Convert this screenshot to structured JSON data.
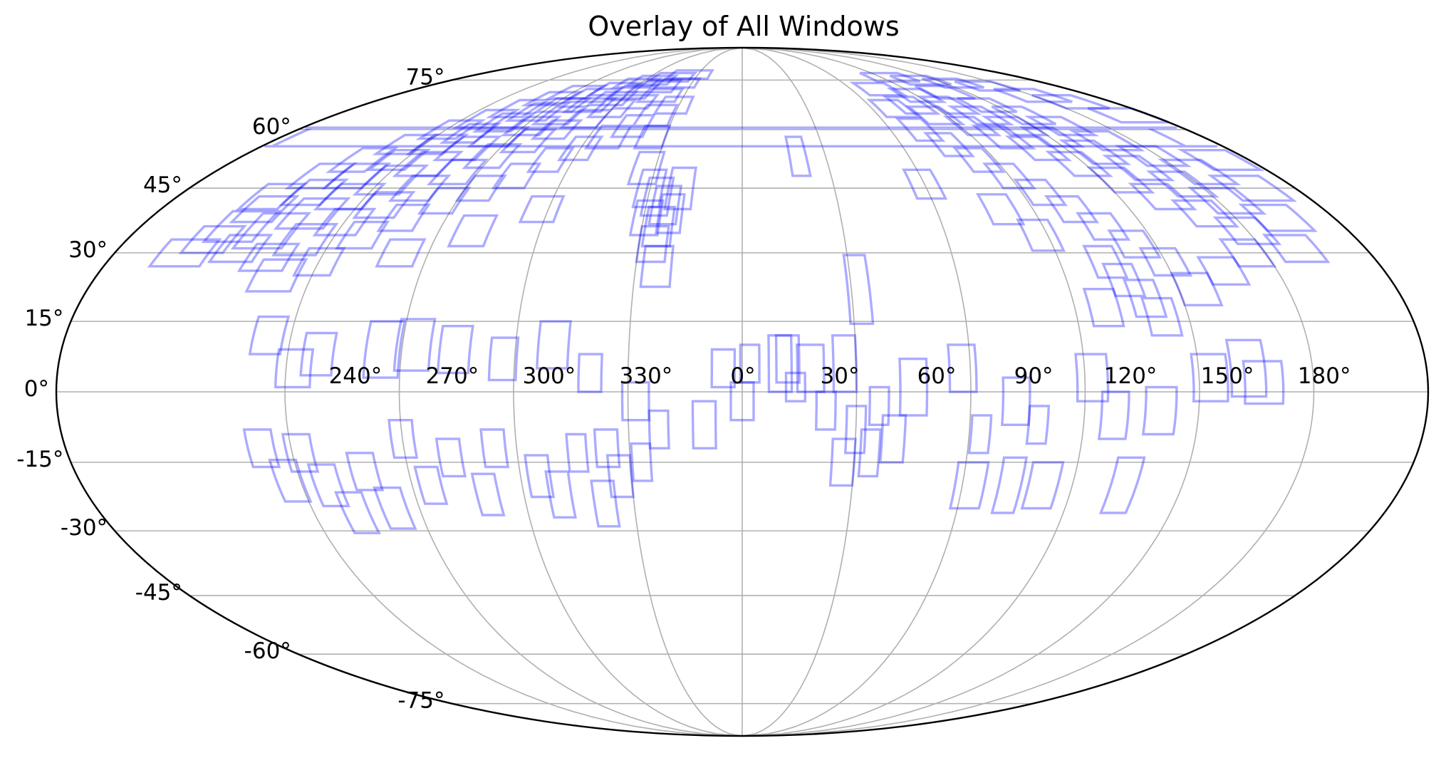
{
  "chart_data": {
    "type": "scatter",
    "projection": "mollweide",
    "title": "Overlay of All Windows",
    "grid": true,
    "colors": {
      "windows": "#0000ff",
      "grid": "#b0b0b0",
      "frame": "#000000"
    },
    "lon_ticks": [
      {
        "lon": 240,
        "label": "240°"
      },
      {
        "lon": 270,
        "label": "270°"
      },
      {
        "lon": 300,
        "label": "300°"
      },
      {
        "lon": 330,
        "label": "330°"
      },
      {
        "lon": 0,
        "label": "0°"
      },
      {
        "lon": 30,
        "label": "30°"
      },
      {
        "lon": 60,
        "label": "60°"
      },
      {
        "lon": 90,
        "label": "90°"
      },
      {
        "lon": 120,
        "label": "120°"
      },
      {
        "lon": 150,
        "label": "150°"
      },
      {
        "lon": 180,
        "label": "180°"
      }
    ],
    "lat_ticks": [
      {
        "lat": 75,
        "label": "75°"
      },
      {
        "lat": 60,
        "label": "60°"
      },
      {
        "lat": 45,
        "label": "45°"
      },
      {
        "lat": 30,
        "label": "30°"
      },
      {
        "lat": 15,
        "label": "15°"
      },
      {
        "lat": 0,
        "label": "0°"
      },
      {
        "lat": -15,
        "label": "-15°"
      },
      {
        "lat": -30,
        "label": "-30°"
      },
      {
        "lat": -45,
        "label": "-45°"
      },
      {
        "lat": -60,
        "label": "-60°"
      },
      {
        "lat": -75,
        "label": "-75°"
      }
    ],
    "windows": [
      {
        "lon": -160,
        "lat": 30,
        "w": 14,
        "h": 6
      },
      {
        "lon": -155,
        "lat": 33,
        "w": 12,
        "h": 6
      },
      {
        "lon": -150,
        "lat": 36,
        "w": 14,
        "h": 7
      },
      {
        "lon": -148,
        "lat": 40,
        "w": 12,
        "h": 6
      },
      {
        "lon": -145,
        "lat": 31,
        "w": 12,
        "h": 6
      },
      {
        "lon": -140,
        "lat": 35,
        "w": 14,
        "h": 8
      },
      {
        "lon": -138,
        "lat": 44,
        "w": 12,
        "h": 6
      },
      {
        "lon": -135,
        "lat": 29,
        "w": 12,
        "h": 6
      },
      {
        "lon": -132,
        "lat": 39,
        "w": 14,
        "h": 7
      },
      {
        "lon": -130,
        "lat": 48,
        "w": 12,
        "h": 6
      },
      {
        "lon": -128,
        "lat": 33,
        "w": 12,
        "h": 7
      },
      {
        "lon": -125,
        "lat": 43,
        "w": 14,
        "h": 6
      },
      {
        "lon": -122,
        "lat": 52,
        "w": 12,
        "h": 5
      },
      {
        "lon": -120,
        "lat": 37,
        "w": 12,
        "h": 6
      },
      {
        "lon": -117,
        "lat": 47,
        "w": 14,
        "h": 7
      },
      {
        "lon": -115,
        "lat": 56,
        "w": 12,
        "h": 5
      },
      {
        "lon": -112,
        "lat": 41,
        "w": 12,
        "h": 6
      },
      {
        "lon": -110,
        "lat": 51,
        "w": 14,
        "h": 6
      },
      {
        "lon": -108,
        "lat": 59,
        "w": 12,
        "h": 5
      },
      {
        "lon": -105,
        "lat": 45,
        "w": 12,
        "h": 6
      },
      {
        "lon": -102,
        "lat": 55,
        "w": 14,
        "h": 6
      },
      {
        "lon": -100,
        "lat": 62,
        "w": 14,
        "h": 5
      },
      {
        "lon": -97,
        "lat": 49,
        "w": 12,
        "h": 6
      },
      {
        "lon": -95,
        "lat": 58,
        "w": 14,
        "h": 5
      },
      {
        "lon": -92,
        "lat": 65,
        "w": 16,
        "h": 5
      },
      {
        "lon": -90,
        "lat": 53,
        "w": 12,
        "h": 6
      },
      {
        "lon": -87,
        "lat": 61,
        "w": 14,
        "h": 5
      },
      {
        "lon": -85,
        "lat": 67,
        "w": 16,
        "h": 4
      },
      {
        "lon": -82,
        "lat": 57,
        "w": 12,
        "h": 6
      },
      {
        "lon": -80,
        "lat": 64,
        "w": 14,
        "h": 5
      },
      {
        "lon": -77,
        "lat": 70,
        "w": 18,
        "h": 4
      },
      {
        "lon": -75,
        "lat": 60,
        "w": 12,
        "h": 5
      },
      {
        "lon": -72,
        "lat": 67,
        "w": 16,
        "h": 4
      },
      {
        "lon": -70,
        "lat": 72,
        "w": 18,
        "h": 4
      },
      {
        "lon": -67,
        "lat": 63,
        "w": 14,
        "h": 5
      },
      {
        "lon": -65,
        "lat": 69,
        "w": 16,
        "h": 4
      },
      {
        "lon": -62,
        "lat": 74,
        "w": 20,
        "h": 3
      },
      {
        "lon": -60,
        "lat": 66,
        "w": 14,
        "h": 5
      },
      {
        "lon": -58,
        "lat": 71,
        "w": 18,
        "h": 4
      },
      {
        "lon": -55,
        "lat": 75,
        "w": 22,
        "h": 3
      },
      {
        "lon": -52,
        "lat": 68,
        "w": 16,
        "h": 4
      },
      {
        "lon": -48,
        "lat": 73,
        "w": 20,
        "h": 4
      },
      {
        "lon": -45,
        "lat": 76,
        "w": 24,
        "h": 3
      },
      {
        "lon": -42,
        "lat": 70,
        "w": 18,
        "h": 4
      },
      {
        "lon": -38,
        "lat": 74,
        "w": 22,
        "h": 3
      },
      {
        "lon": -35,
        "lat": 77,
        "w": 26,
        "h": 3
      },
      {
        "lon": -150,
        "lat": 43,
        "w": 12,
        "h": 6
      },
      {
        "lon": -142,
        "lat": 48,
        "w": 12,
        "h": 6
      },
      {
        "lon": -135,
        "lat": 52,
        "w": 12,
        "h": 6
      },
      {
        "lon": -127,
        "lat": 56,
        "w": 12,
        "h": 5
      },
      {
        "lon": -118,
        "lat": 60,
        "w": 14,
        "h": 5
      },
      {
        "lon": -110,
        "lat": 63,
        "w": 14,
        "h": 5
      },
      {
        "lon": -103,
        "lat": 66,
        "w": 14,
        "h": 5
      },
      {
        "lon": -95,
        "lat": 69,
        "w": 16,
        "h": 4
      },
      {
        "lon": -88,
        "lat": 71,
        "w": 18,
        "h": 4
      },
      {
        "lon": -112,
        "lat": 34,
        "w": 10,
        "h": 6
      },
      {
        "lon": -103,
        "lat": 38,
        "w": 10,
        "h": 6
      },
      {
        "lon": -94,
        "lat": 42,
        "w": 10,
        "h": 6
      },
      {
        "lon": -85,
        "lat": 45,
        "w": 10,
        "h": 6
      },
      {
        "lon": -76,
        "lat": 48,
        "w": 10,
        "h": 6
      },
      {
        "lon": -68,
        "lat": 52,
        "w": 10,
        "h": 6
      },
      {
        "lon": -60,
        "lat": 55,
        "w": 10,
        "h": 6
      },
      {
        "lon": -52,
        "lat": 58,
        "w": 12,
        "h": 6
      },
      {
        "lon": -45,
        "lat": 61,
        "w": 12,
        "h": 6
      },
      {
        "lon": -38,
        "lat": 64,
        "w": 14,
        "h": 6
      },
      {
        "lon": -32,
        "lat": 67,
        "w": 14,
        "h": 5
      },
      {
        "lon": -130,
        "lat": 25,
        "w": 12,
        "h": 7
      },
      {
        "lon": -120,
        "lat": 28,
        "w": 10,
        "h": 6
      },
      {
        "lon": -98,
        "lat": 30,
        "w": 10,
        "h": 6
      },
      {
        "lon": -80,
        "lat": 35,
        "w": 10,
        "h": 7
      },
      {
        "lon": -62,
        "lat": 40,
        "w": 10,
        "h": 6
      },
      {
        "lon": -33,
        "lat": 50,
        "w": 9,
        "h": 8
      },
      {
        "lon": -30,
        "lat": 45,
        "w": 8,
        "h": 9
      },
      {
        "lon": -27,
        "lat": 43,
        "w": 8,
        "h": 9
      },
      {
        "lon": -24,
        "lat": 41,
        "w": 8,
        "h": 9
      },
      {
        "lon": -29,
        "lat": 38,
        "w": 8,
        "h": 8
      },
      {
        "lon": -25,
        "lat": 36,
        "w": 8,
        "h": 9
      },
      {
        "lon": -22,
        "lat": 39,
        "w": 7,
        "h": 9
      },
      {
        "lon": -26,
        "lat": 32,
        "w": 8,
        "h": 8
      },
      {
        "lon": -24,
        "lat": 27,
        "w": 8,
        "h": 9
      },
      {
        "lon": -20,
        "lat": 45,
        "w": 8,
        "h": 10
      },
      {
        "lon": -35,
        "lat": 58,
        "w": 10,
        "h": 6
      },
      {
        "lon": 20,
        "lat": 53,
        "w": 6,
        "h": 10
      },
      {
        "lon": 32,
        "lat": 22,
        "w": 6,
        "h": 15
      },
      {
        "lon": 80,
        "lat": 67,
        "w": 14,
        "h": 5
      },
      {
        "lon": 85,
        "lat": 64,
        "w": 14,
        "h": 5
      },
      {
        "lon": 90,
        "lat": 70,
        "w": 16,
        "h": 4
      },
      {
        "lon": 95,
        "lat": 61,
        "w": 12,
        "h": 5
      },
      {
        "lon": 98,
        "lat": 67,
        "w": 14,
        "h": 5
      },
      {
        "lon": 102,
        "lat": 58,
        "w": 12,
        "h": 6
      },
      {
        "lon": 105,
        "lat": 64,
        "w": 14,
        "h": 5
      },
      {
        "lon": 108,
        "lat": 71,
        "w": 18,
        "h": 4
      },
      {
        "lon": 110,
        "lat": 55,
        "w": 12,
        "h": 6
      },
      {
        "lon": 113,
        "lat": 61,
        "w": 14,
        "h": 5
      },
      {
        "lon": 116,
        "lat": 67,
        "w": 16,
        "h": 4
      },
      {
        "lon": 118,
        "lat": 51,
        "w": 12,
        "h": 6
      },
      {
        "lon": 121,
        "lat": 58,
        "w": 12,
        "h": 5
      },
      {
        "lon": 124,
        "lat": 64,
        "w": 14,
        "h": 5
      },
      {
        "lon": 126,
        "lat": 47,
        "w": 12,
        "h": 6
      },
      {
        "lon": 129,
        "lat": 54,
        "w": 12,
        "h": 6
      },
      {
        "lon": 132,
        "lat": 61,
        "w": 14,
        "h": 5
      },
      {
        "lon": 134,
        "lat": 43,
        "w": 12,
        "h": 6
      },
      {
        "lon": 137,
        "lat": 50,
        "w": 12,
        "h": 6
      },
      {
        "lon": 140,
        "lat": 57,
        "w": 14,
        "h": 5
      },
      {
        "lon": 142,
        "lat": 39,
        "w": 12,
        "h": 6
      },
      {
        "lon": 145,
        "lat": 46,
        "w": 12,
        "h": 6
      },
      {
        "lon": 148,
        "lat": 53,
        "w": 14,
        "h": 5
      },
      {
        "lon": 150,
        "lat": 35,
        "w": 12,
        "h": 6
      },
      {
        "lon": 153,
        "lat": 42,
        "w": 14,
        "h": 6
      },
      {
        "lon": 156,
        "lat": 49,
        "w": 14,
        "h": 6
      },
      {
        "lon": 160,
        "lat": 31,
        "w": 12,
        "h": 6
      },
      {
        "lon": 163,
        "lat": 38,
        "w": 14,
        "h": 6
      },
      {
        "lon": 166,
        "lat": 45,
        "w": 16,
        "h": 6
      },
      {
        "lon": 170,
        "lat": 52,
        "w": 16,
        "h": 5
      },
      {
        "lon": 175,
        "lat": 58,
        "w": 18,
        "h": 5
      },
      {
        "lon": 170,
        "lat": 64,
        "w": 20,
        "h": 4
      },
      {
        "lon": 160,
        "lat": 68,
        "w": 20,
        "h": 4
      },
      {
        "lon": 150,
        "lat": 70,
        "w": 22,
        "h": 4
      },
      {
        "lon": 140,
        "lat": 73,
        "w": 22,
        "h": 3
      },
      {
        "lon": 125,
        "lat": 74,
        "w": 22,
        "h": 3
      },
      {
        "lon": 110,
        "lat": 75,
        "w": 24,
        "h": 3
      },
      {
        "lon": 95,
        "lat": 76,
        "w": 26,
        "h": 3
      },
      {
        "lon": 75,
        "lat": 72,
        "w": 18,
        "h": 4
      },
      {
        "lon": 70,
        "lat": 66,
        "w": 14,
        "h": 5
      },
      {
        "lon": 72,
        "lat": 60,
        "w": 10,
        "h": 6
      },
      {
        "lon": 78,
        "lat": 56,
        "w": 10,
        "h": 6
      },
      {
        "lon": 84,
        "lat": 52,
        "w": 10,
        "h": 6
      },
      {
        "lon": 90,
        "lat": 48,
        "w": 10,
        "h": 6
      },
      {
        "lon": 96,
        "lat": 44,
        "w": 10,
        "h": 6
      },
      {
        "lon": 102,
        "lat": 40,
        "w": 10,
        "h": 6
      },
      {
        "lon": 108,
        "lat": 36,
        "w": 10,
        "h": 6
      },
      {
        "lon": 114,
        "lat": 32,
        "w": 10,
        "h": 6
      },
      {
        "lon": 120,
        "lat": 28,
        "w": 10,
        "h": 6
      },
      {
        "lon": 103,
        "lat": 28,
        "w": 8,
        "h": 7
      },
      {
        "lon": 106,
        "lat": 24,
        "w": 8,
        "h": 7
      },
      {
        "lon": 110,
        "lat": 20,
        "w": 8,
        "h": 8
      },
      {
        "lon": 113,
        "lat": 16,
        "w": 8,
        "h": 8
      },
      {
        "lon": 98,
        "lat": 18,
        "w": 8,
        "h": 8
      },
      {
        "lon": 125,
        "lat": 22,
        "w": 10,
        "h": 7
      },
      {
        "lon": 135,
        "lat": 26,
        "w": 10,
        "h": 6
      },
      {
        "lon": 145,
        "lat": 30,
        "w": 10,
        "h": 6
      },
      {
        "lon": 88,
        "lat": 34,
        "w": 9,
        "h": 7
      },
      {
        "lon": 80,
        "lat": 40,
        "w": 9,
        "h": 7
      },
      {
        "lon": 60,
        "lat": 46,
        "w": 9,
        "h": 7
      },
      {
        "lon": -126,
        "lat": 12,
        "w": 8,
        "h": 8
      },
      {
        "lon": -118,
        "lat": 5,
        "w": 9,
        "h": 8
      },
      {
        "lon": -112,
        "lat": 8,
        "w": 8,
        "h": 9
      },
      {
        "lon": -95,
        "lat": 9,
        "w": 9,
        "h": 12
      },
      {
        "lon": -87,
        "lat": 10,
        "w": 9,
        "h": 11
      },
      {
        "lon": -76,
        "lat": 9,
        "w": 8,
        "h": 10
      },
      {
        "lon": -63,
        "lat": 7,
        "w": 7,
        "h": 9
      },
      {
        "lon": -50,
        "lat": 10,
        "w": 8,
        "h": 10
      },
      {
        "lon": -40,
        "lat": 4,
        "w": 6,
        "h": 8
      },
      {
        "lon": -28,
        "lat": -2,
        "w": 7,
        "h": 8
      },
      {
        "lon": -36,
        "lat": -12,
        "w": 6,
        "h": 8
      },
      {
        "lon": -22,
        "lat": -8,
        "w": 5,
        "h": 8
      },
      {
        "lon": -10,
        "lat": -7,
        "w": 6,
        "h": 10
      },
      {
        "lon": -5,
        "lat": 5,
        "w": 6,
        "h": 8
      },
      {
        "lon": 0,
        "lat": -2,
        "w": 6,
        "h": 8
      },
      {
        "lon": 2,
        "lat": 6,
        "w": 5,
        "h": 8
      },
      {
        "lon": 10,
        "lat": 6,
        "w": 6,
        "h": 12
      },
      {
        "lon": 12,
        "lat": 7,
        "w": 6,
        "h": 10
      },
      {
        "lon": 14,
        "lat": 1,
        "w": 5,
        "h": 6
      },
      {
        "lon": 18,
        "lat": 5,
        "w": 7,
        "h": 10
      },
      {
        "lon": 22,
        "lat": -4,
        "w": 5,
        "h": 8
      },
      {
        "lon": 27,
        "lat": 6,
        "w": 6,
        "h": 12
      },
      {
        "lon": 30,
        "lat": -8,
        "w": 5,
        "h": 10
      },
      {
        "lon": 34,
        "lat": -13,
        "w": 5,
        "h": 10
      },
      {
        "lon": 36,
        "lat": -3,
        "w": 5,
        "h": 8
      },
      {
        "lon": 27,
        "lat": -15,
        "w": 6,
        "h": 10
      },
      {
        "lon": 45,
        "lat": 1,
        "w": 7,
        "h": 12
      },
      {
        "lon": 40,
        "lat": -10,
        "w": 6,
        "h": 10
      },
      {
        "lon": 58,
        "lat": 5,
        "w": 7,
        "h": 10
      },
      {
        "lon": 72,
        "lat": -2,
        "w": 7,
        "h": 10
      },
      {
        "lon": 63,
        "lat": -9,
        "w": 5,
        "h": 8
      },
      {
        "lon": 78,
        "lat": -7,
        "w": 5,
        "h": 8
      },
      {
        "lon": 62,
        "lat": -20,
        "w": 8,
        "h": 10
      },
      {
        "lon": 73,
        "lat": -20,
        "w": 6,
        "h": 12
      },
      {
        "lon": 82,
        "lat": -20,
        "w": 8,
        "h": 10
      },
      {
        "lon": 92,
        "lat": 3,
        "w": 8,
        "h": 10
      },
      {
        "lon": 98,
        "lat": -5,
        "w": 7,
        "h": 10
      },
      {
        "lon": 104,
        "lat": -20,
        "w": 7,
        "h": 12
      },
      {
        "lon": 110,
        "lat": -4,
        "w": 8,
        "h": 10
      },
      {
        "lon": 123,
        "lat": 3,
        "w": 9,
        "h": 10
      },
      {
        "lon": 133,
        "lat": 5,
        "w": 9,
        "h": 12
      },
      {
        "lon": 137,
        "lat": 2,
        "w": 10,
        "h": 9
      },
      {
        "lon": -128,
        "lat": -12,
        "w": 7,
        "h": 8
      },
      {
        "lon": -123,
        "lat": -19,
        "w": 7,
        "h": 9
      },
      {
        "lon": -118,
        "lat": -13,
        "w": 7,
        "h": 8
      },
      {
        "lon": -113,
        "lat": -20,
        "w": 7,
        "h": 9
      },
      {
        "lon": -108,
        "lat": -26,
        "w": 7,
        "h": 9
      },
      {
        "lon": -102,
        "lat": -17,
        "w": 7,
        "h": 8
      },
      {
        "lon": -97,
        "lat": -25,
        "w": 7,
        "h": 9
      },
      {
        "lon": -90,
        "lat": -10,
        "w": 6,
        "h": 8
      },
      {
        "lon": -85,
        "lat": -20,
        "w": 6,
        "h": 8
      },
      {
        "lon": -78,
        "lat": -14,
        "w": 6,
        "h": 8
      },
      {
        "lon": -70,
        "lat": -22,
        "w": 6,
        "h": 9
      },
      {
        "lon": -66,
        "lat": -12,
        "w": 6,
        "h": 8
      },
      {
        "lon": -55,
        "lat": -18,
        "w": 6,
        "h": 9
      },
      {
        "lon": -50,
        "lat": -22,
        "w": 6,
        "h": 10
      },
      {
        "lon": -44,
        "lat": -13,
        "w": 5,
        "h": 8
      },
      {
        "lon": -38,
        "lat": -24,
        "w": 6,
        "h": 10
      },
      {
        "lon": -33,
        "lat": -18,
        "w": 6,
        "h": 9
      },
      {
        "lon": -27,
        "lat": -15,
        "w": 5,
        "h": 8
      }
    ]
  }
}
